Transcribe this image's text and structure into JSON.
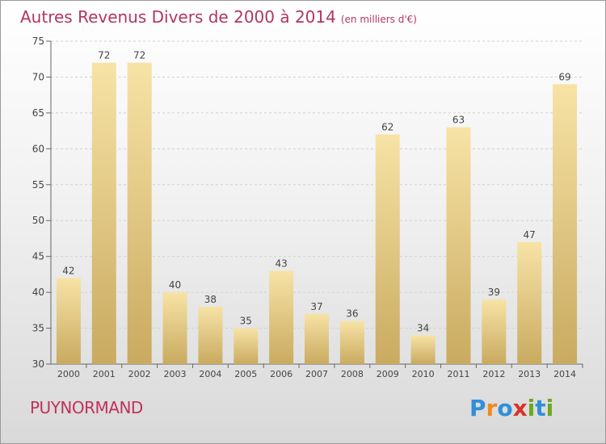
{
  "title": "Autres Revenus Divers de 2000 à 2014",
  "unit": "(en milliers d'€)",
  "place": "PUYNORMAND",
  "logo": {
    "letters": [
      "P",
      "r",
      "o",
      "x",
      "i",
      "t",
      "i"
    ],
    "colors": [
      "#2f8fd8",
      "#f08a1c",
      "#2f8fd8",
      "#d8322a",
      "#6aa821",
      "#2f8fd8",
      "#6aa821"
    ]
  },
  "colors": {
    "bar_top": "#f7e3a6",
    "bar_bottom": "#c9aa60",
    "title": "#b2365f"
  },
  "chart_data": {
    "type": "bar",
    "categories": [
      "2000",
      "2001",
      "2002",
      "2003",
      "2004",
      "2005",
      "2006",
      "2007",
      "2008",
      "2009",
      "2010",
      "2011",
      "2012",
      "2013",
      "2014"
    ],
    "values": [
      42,
      72,
      72,
      40,
      38,
      35,
      43,
      37,
      36,
      62,
      34,
      63,
      39,
      47,
      69
    ],
    "ylim": [
      30,
      75
    ],
    "yticks": [
      30,
      35,
      40,
      45,
      50,
      55,
      60,
      65,
      70,
      75
    ],
    "grid": true
  }
}
